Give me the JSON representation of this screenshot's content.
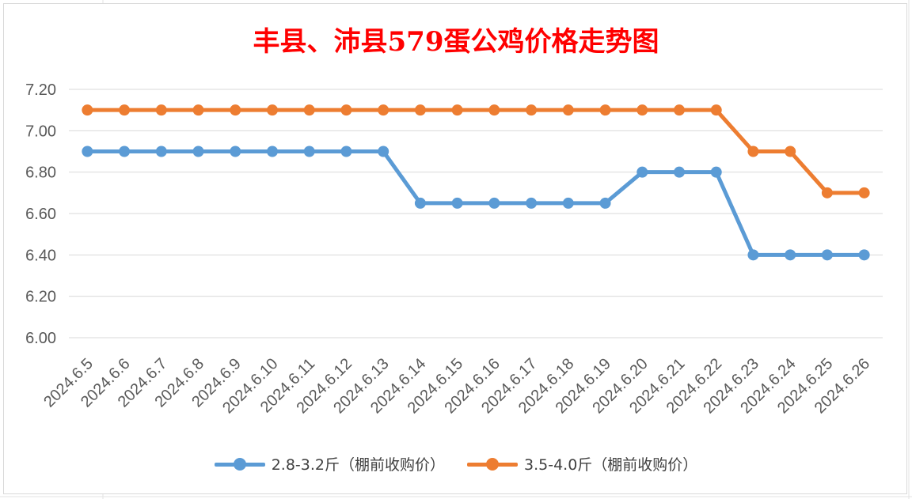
{
  "chart_data": {
    "type": "line",
    "title": "丰县、沛县579蛋公鸡价格走势图",
    "categories": [
      "2024.6.5",
      "2024.6.6",
      "2024.6.7",
      "2024.6.8",
      "2024.6.9",
      "2024.6.10",
      "2024.6.11",
      "2024.6.12",
      "2024.6.13",
      "2024.6.14",
      "2024.6.15",
      "2024.6.16",
      "2024.6.17",
      "2024.6.18",
      "2024.6.19",
      "2024.6.20",
      "2024.6.21",
      "2024.6.22",
      "2024.6.23",
      "2024.6.24",
      "2024.6.25",
      "2024.6.26"
    ],
    "series": [
      {
        "name": "2.8-3.2斤（棚前收购价）",
        "color": "#5b9bd5",
        "values": [
          6.9,
          6.9,
          6.9,
          6.9,
          6.9,
          6.9,
          6.9,
          6.9,
          6.9,
          6.65,
          6.65,
          6.65,
          6.65,
          6.65,
          6.65,
          6.8,
          6.8,
          6.8,
          6.4,
          6.4,
          6.4,
          6.4
        ]
      },
      {
        "name": "3.5-4.0斤（棚前收购价）",
        "color": "#ed7d31",
        "values": [
          7.1,
          7.1,
          7.1,
          7.1,
          7.1,
          7.1,
          7.1,
          7.1,
          7.1,
          7.1,
          7.1,
          7.1,
          7.1,
          7.1,
          7.1,
          7.1,
          7.1,
          7.1,
          6.9,
          6.9,
          6.7,
          6.7
        ]
      }
    ],
    "yticks": [
      "6.00",
      "6.20",
      "6.40",
      "6.60",
      "6.80",
      "7.00",
      "7.20"
    ],
    "ylim": [
      6.0,
      7.2
    ],
    "grid": true,
    "legend_position": "bottom",
    "title_color": "#ff0000"
  }
}
